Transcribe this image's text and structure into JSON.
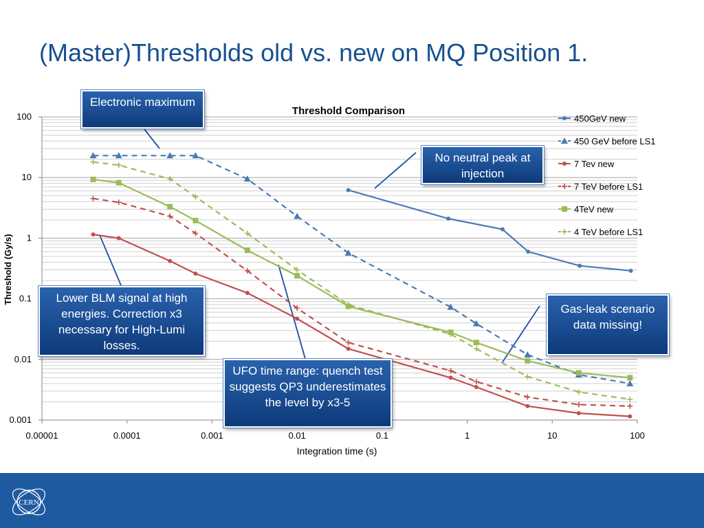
{
  "slide": {
    "title": "(Master)Thresholds old vs. new on MQ Position 1."
  },
  "callouts": {
    "electronic_max": "Electronic maximum",
    "no_neutral_peak": "No neutral peak at injection",
    "lower_blm": "Lower BLM signal at high energies. Correction x3 necessary for High-Lumi losses.",
    "ufo": "UFO time range: quench test suggests QP3 underestimates the level by x3-5",
    "gas_leak": "Gas-leak scenario data missing!"
  },
  "footer": {
    "logo_text": "CERN",
    "color": "#1e5aa0"
  },
  "chart_data": {
    "type": "line",
    "title": "Threshold Comparison",
    "xlabel": "Integration time (s)",
    "ylabel": "Threshold (Gy/s)",
    "x_scale": "log",
    "y_scale": "log",
    "xlim": [
      1e-05,
      100
    ],
    "ylim": [
      0.001,
      100
    ],
    "x_ticks": [
      1e-05,
      0.0001,
      0.001,
      0.01,
      0.1,
      1,
      10,
      100
    ],
    "x_tick_labels": [
      "0.00001",
      "0.0001",
      "0.001",
      "0.01",
      "0.1",
      "1",
      "10",
      "100"
    ],
    "y_ticks": [
      0.001,
      0.01,
      0.1,
      1,
      10,
      100
    ],
    "y_tick_labels": [
      "0.001",
      "0.01",
      "0.1",
      "1",
      "10",
      "100"
    ],
    "grid": "horizontal minor",
    "legend_position": "right",
    "series": [
      {
        "name": "450GeV new",
        "color": "#4a7ab5",
        "dash": "solid",
        "marker": "dot",
        "x": [
          0.04,
          0.6,
          2.6,
          5.2,
          21,
          84
        ],
        "y": [
          6.2,
          2.1,
          1.4,
          0.6,
          0.35,
          0.29
        ]
      },
      {
        "name": "450 GeV before LS1",
        "color": "#4a7ab5",
        "dash": "dashed",
        "marker": "triangle",
        "x": [
          4e-05,
          8e-05,
          0.00032,
          0.00064,
          0.0026,
          0.01,
          0.04,
          0.64,
          1.28,
          5.12,
          20.48,
          81.92
        ],
        "y": [
          23,
          23,
          23,
          23,
          9.5,
          2.3,
          0.57,
          0.073,
          0.039,
          0.012,
          0.0056,
          0.004
        ]
      },
      {
        "name": "7 Tev new",
        "color": "#c0504d",
        "dash": "solid",
        "marker": "dot",
        "x": [
          4e-05,
          8e-05,
          0.00032,
          0.00064,
          0.0026,
          0.01,
          0.04,
          0.64,
          1.28,
          5.12,
          20.48,
          81.92
        ],
        "y": [
          1.15,
          1.0,
          0.42,
          0.26,
          0.125,
          0.047,
          0.015,
          0.005,
          0.0035,
          0.0017,
          0.0013,
          0.00115
        ]
      },
      {
        "name": "7 TeV before LS1",
        "color": "#c0504d",
        "dash": "dashed",
        "marker": "plus",
        "x": [
          4e-05,
          8e-05,
          0.00032,
          0.00064,
          0.0026,
          0.01,
          0.04,
          0.64,
          1.28,
          5.12,
          20.48,
          81.92
        ],
        "y": [
          4.5,
          3.9,
          2.3,
          1.2,
          0.29,
          0.07,
          0.019,
          0.0065,
          0.0043,
          0.0024,
          0.0018,
          0.0017
        ]
      },
      {
        "name": "4TeV new",
        "color": "#9bbb59",
        "dash": "solid",
        "marker": "square",
        "x": [
          4e-05,
          8e-05,
          0.00032,
          0.00064,
          0.0026,
          0.01,
          0.04,
          0.64,
          1.28,
          5.12,
          20.48,
          81.92
        ],
        "y": [
          9.3,
          8.2,
          3.3,
          1.95,
          0.63,
          0.24,
          0.075,
          0.028,
          0.019,
          0.0095,
          0.006,
          0.005
        ]
      },
      {
        "name": "4 TeV before LS1",
        "color": "#9bbb59",
        "dash": "dashed",
        "marker": "plus",
        "x": [
          4e-05,
          8e-05,
          0.00032,
          0.00064,
          0.0026,
          0.01,
          0.04,
          0.64,
          1.28,
          5.12,
          20.48,
          81.92
        ],
        "y": [
          18,
          16,
          9.5,
          4.8,
          1.2,
          0.3,
          0.08,
          0.026,
          0.015,
          0.0052,
          0.0029,
          0.0022
        ]
      }
    ]
  }
}
